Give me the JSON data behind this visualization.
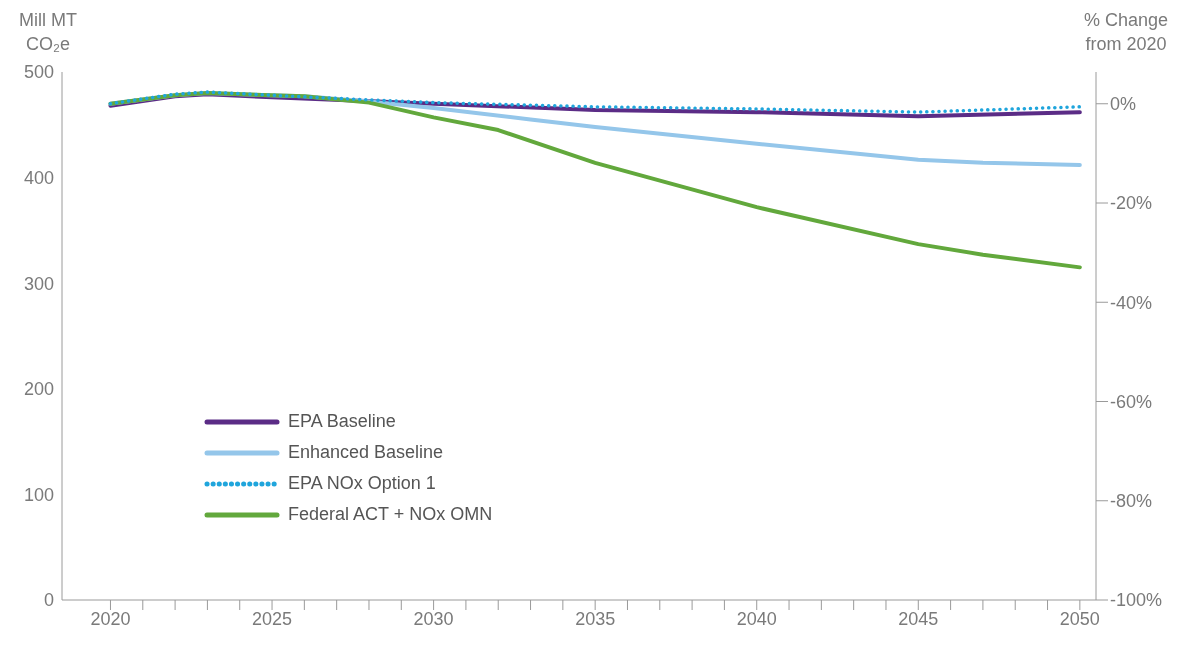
{
  "chart_data": {
    "type": "line",
    "ylabel": "Mill MT CO₂e",
    "y2label": "% Change from 2020",
    "xlim": [
      2018.5,
      2050.5
    ],
    "xticks": [
      2020,
      {
        "value": 2021,
        "label": null
      },
      {
        "value": 2022,
        "label": null
      },
      {
        "value": 2023,
        "label": null
      },
      {
        "value": 2024,
        "label": null
      },
      2025,
      {
        "value": 2026,
        "label": null
      },
      {
        "value": 2027,
        "label": null
      },
      {
        "value": 2028,
        "label": null
      },
      {
        "value": 2029,
        "label": null
      },
      2030,
      {
        "value": 2031,
        "label": null
      },
      {
        "value": 2032,
        "label": null
      },
      {
        "value": 2033,
        "label": null
      },
      {
        "value": 2034,
        "label": null
      },
      2035,
      {
        "value": 2036,
        "label": null
      },
      {
        "value": 2037,
        "label": null
      },
      {
        "value": 2038,
        "label": null
      },
      {
        "value": 2039,
        "label": null
      },
      2040,
      {
        "value": 2041,
        "label": null
      },
      {
        "value": 2042,
        "label": null
      },
      {
        "value": 2043,
        "label": null
      },
      {
        "value": 2044,
        "label": null
      },
      2045,
      {
        "value": 2046,
        "label": null
      },
      {
        "value": 2047,
        "label": null
      },
      {
        "value": 2048,
        "label": null
      },
      {
        "value": 2049,
        "label": null
      },
      2050
    ],
    "ylim": [
      0,
      500
    ],
    "yticks": [
      0,
      100,
      200,
      300,
      400,
      500
    ],
    "y2lim": [
      -100,
      6.4
    ],
    "y2ticks": [
      {
        "value": -100,
        "label": "-100%"
      },
      {
        "value": -80,
        "label": "-80%"
      },
      {
        "value": -60,
        "label": "-60%"
      },
      {
        "value": -40,
        "label": "-40%"
      },
      {
        "value": -20,
        "label": "-20%"
      },
      {
        "value": 0,
        "label": "0%"
      }
    ],
    "grid": false,
    "legend": "bottom left",
    "marker": "none",
    "series": [
      {
        "name": "EPA Baseline",
        "color": "#5b2c86",
        "line_style": "solid",
        "x": [
          2020,
          2022,
          2023,
          2025,
          2030,
          2035,
          2040,
          2045,
          2050
        ],
        "values": [
          468,
          477,
          479,
          476,
          470,
          464,
          462,
          458,
          462
        ]
      },
      {
        "name": "Enhanced Baseline",
        "color": "#94c6ea",
        "line_style": "solid",
        "x": [
          2020,
          2022,
          2023,
          2026,
          2028,
          2030,
          2033,
          2035,
          2040,
          2045,
          2047,
          2050
        ],
        "values": [
          470,
          478,
          480,
          477,
          472,
          466,
          455,
          448,
          432,
          417,
          414,
          412
        ]
      },
      {
        "name": "EPA NOx Option 1",
        "color": "#1fa5dc",
        "line_style": "dotted",
        "x": [
          2020,
          2022,
          2023,
          2025,
          2027,
          2030,
          2035,
          2040,
          2045,
          2050
        ],
        "values": [
          470,
          479,
          481,
          478,
          475,
          471,
          467,
          465,
          462,
          467
        ]
      },
      {
        "name": "Federal ACT + NOx OMN",
        "color": "#62a83c",
        "line_style": "solid",
        "x": [
          2020,
          2022,
          2023,
          2026,
          2028,
          2030,
          2032,
          2035,
          2040,
          2045,
          2047,
          2050
        ],
        "values": [
          470,
          478,
          480,
          477,
          471,
          457,
          445,
          414,
          372,
          337,
          327,
          315
        ]
      }
    ]
  }
}
